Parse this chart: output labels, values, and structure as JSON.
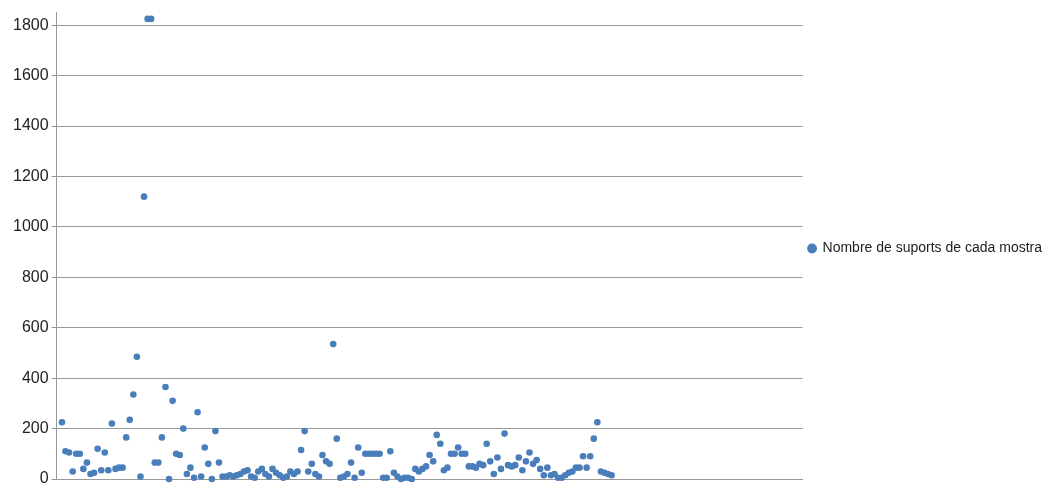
{
  "chart_data": {
    "type": "scatter",
    "categories": [
      null,
      null,
      null,
      null,
      null,
      null,
      null,
      null,
      null,
      null,
      null,
      null,
      null,
      null,
      null,
      null,
      null,
      null,
      null,
      null,
      null,
      null,
      null,
      null,
      null,
      null,
      null,
      null,
      null,
      null,
      null,
      null,
      null,
      null,
      null,
      null,
      null,
      null,
      null,
      null,
      null,
      null,
      null,
      null,
      null,
      null,
      null,
      null,
      null,
      null,
      null,
      null,
      null,
      null,
      null,
      null,
      null,
      null,
      null,
      null,
      null,
      null,
      null,
      null,
      null,
      null,
      null,
      null,
      null,
      null,
      null,
      null,
      null,
      null,
      null,
      null,
      null,
      null,
      null,
      null,
      null,
      null,
      null,
      null,
      null,
      null,
      null,
      null,
      null,
      null,
      null,
      null,
      null,
      null,
      null,
      null,
      null,
      null,
      null,
      null,
      null,
      null,
      null,
      null,
      null,
      null,
      null,
      null,
      null,
      null,
      null,
      null,
      null,
      null,
      null,
      null,
      null,
      null,
      null,
      null,
      null,
      null,
      null,
      null,
      null,
      null,
      null,
      null,
      null,
      null,
      null,
      null,
      null,
      null,
      null,
      null,
      null,
      null,
      null,
      null,
      null,
      null,
      null,
      null,
      null,
      null,
      null,
      null,
      null,
      null,
      null,
      null,
      null,
      null,
      null,
      null,
      null,
      null,
      null,
      null,
      null,
      null,
      null,
      null,
      null,
      null,
      null,
      null,
      null,
      null,
      null,
      null,
      null,
      null,
      null,
      null,
      null,
      null,
      null,
      null,
      null,
      null,
      null,
      null,
      null,
      null,
      null,
      null,
      null,
      null,
      null,
      null,
      null,
      null,
      null,
      null,
      null,
      null,
      null,
      null,
      null,
      null,
      null,
      null,
      null,
      null,
      null,
      null,
      null
    ],
    "series": [
      {
        "name": "Nombre de suports de cada mostra",
        "color": "#4a7ebb",
        "values": [
          null,
          225,
          110,
          105,
          30,
          100,
          100,
          40,
          65,
          20,
          25,
          120,
          35,
          105,
          35,
          220,
          40,
          45,
          45,
          165,
          235,
          335,
          485,
          10,
          1120,
          1825,
          1825,
          65,
          65,
          165,
          365,
          0,
          310,
          100,
          95,
          200,
          20,
          45,
          5,
          265,
          10,
          125,
          60,
          0,
          190,
          65,
          10,
          10,
          15,
          10,
          15,
          20,
          30,
          35,
          10,
          5,
          30,
          40,
          20,
          10,
          40,
          25,
          15,
          5,
          10,
          30,
          20,
          30,
          115,
          190,
          30,
          60,
          20,
          10,
          95,
          70,
          60,
          535,
          160,
          5,
          10,
          20,
          65,
          5,
          125,
          25,
          100,
          100,
          100,
          100,
          100,
          5,
          5,
          110,
          25,
          10,
          0,
          5,
          5,
          0,
          40,
          30,
          40,
          50,
          95,
          70,
          175,
          140,
          35,
          45,
          100,
          100,
          125,
          100,
          100,
          50,
          50,
          45,
          60,
          55,
          140,
          70,
          20,
          85,
          40,
          180,
          55,
          50,
          55,
          85,
          35,
          70,
          105,
          60,
          75,
          40,
          15,
          45,
          15,
          20,
          5,
          5,
          15,
          25,
          30,
          45,
          45,
          90,
          45,
          90,
          160,
          225,
          30,
          25,
          20,
          15,
          null,
          null,
          null,
          null,
          null,
          null,
          null,
          null,
          null,
          null,
          null,
          null,
          null,
          null,
          null,
          null,
          null,
          null,
          null,
          null,
          null,
          null,
          null,
          null,
          null,
          null,
          null,
          null,
          null,
          null,
          null,
          null,
          null,
          null,
          null,
          null,
          null,
          null,
          null,
          null,
          null,
          null,
          null,
          null,
          null,
          null,
          null,
          null,
          null,
          null,
          null,
          null,
          null
        ]
      }
    ],
    "ylim": [
      0,
      1850
    ],
    "yticks": [
      0,
      200,
      400,
      600,
      800,
      1000,
      1200,
      1400,
      1600,
      1800
    ],
    "grid": "y",
    "legend": "right",
    "marker": "circle",
    "tick_labels": "y"
  }
}
